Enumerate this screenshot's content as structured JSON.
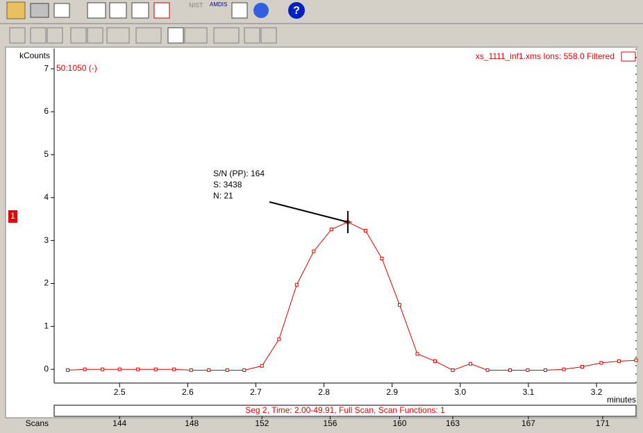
{
  "toolbar": {
    "nist": "NIST",
    "amdis": "AMDIS"
  },
  "chart_data": {
    "type": "line",
    "y_unit": "kCounts",
    "range_label": "50:1050 (-)",
    "file_label": "xs_1111_inf1.xms Ions: 558.0 Filtered",
    "x_label": "minutes",
    "segment_label": "Seg 2, Time: 2.00-49.91, Full Scan, Scan Functions: 1",
    "scans_label": "Scans",
    "trace_number": "1",
    "annotation": [
      "S/N (PP): 164",
      "S: 3438",
      "N: 21"
    ],
    "x": [
      2.424,
      2.449,
      2.475,
      2.5,
      2.527,
      2.553,
      2.58,
      2.605,
      2.631,
      2.658,
      2.683,
      2.709,
      2.734,
      2.76,
      2.785,
      2.811,
      2.835,
      2.861,
      2.885,
      2.911,
      2.937,
      2.963,
      2.989,
      3.015,
      3.04,
      3.073,
      3.099,
      3.125,
      3.152,
      3.179,
      3.207,
      3.233,
      3.258
    ],
    "series": [
      {
        "color": "#e00000",
        "values": [
          -0.02,
          0,
          0,
          0,
          0,
          0,
          0,
          -0.02,
          -0.02,
          -0.02,
          -0.02,
          0.08,
          0.7,
          1.97,
          2.75,
          3.26,
          3.43,
          3.23,
          2.58,
          1.5,
          0.36,
          0.19,
          -0.02,
          0.13,
          -0.02,
          -0.02,
          -0.02,
          -0.02,
          0,
          0.06,
          0.15,
          0.19,
          0.21
        ]
      }
    ],
    "xlim": [
      2.404,
      3.258
    ],
    "ylim": [
      -0.32,
      7.31
    ],
    "xticks": [
      2.5,
      2.6,
      2.7,
      2.8,
      2.9,
      {
        "value": 3.0,
        "label": "3.0"
      },
      3.1,
      3.2
    ],
    "yticks": [
      0,
      1,
      2,
      3,
      4,
      5,
      6,
      7
    ],
    "scan_ticks": [
      {
        "value": 2.5,
        "label": "144"
      },
      {
        "value": 2.606,
        "label": "148"
      },
      {
        "value": 2.709,
        "label": "152"
      },
      {
        "value": 2.809,
        "label": "156"
      },
      {
        "value": 2.911,
        "label": "160"
      },
      {
        "value": 2.989,
        "label": "163"
      },
      {
        "value": 3.1,
        "label": "167"
      },
      {
        "value": 3.209,
        "label": "171"
      }
    ]
  }
}
